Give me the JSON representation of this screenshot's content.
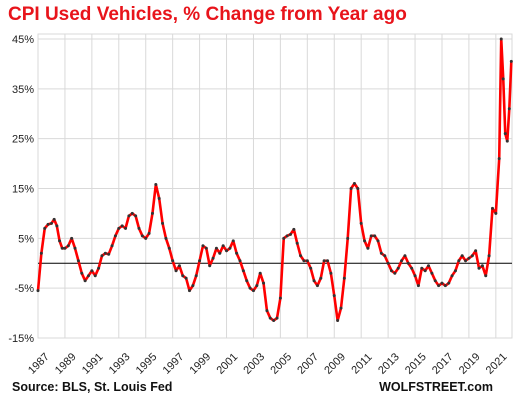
{
  "chart_data": {
    "type": "line",
    "title": "CPI Used Vehicles, % Change from Year ago",
    "xlabel": "",
    "ylabel": "",
    "x_range": [
      1987,
      2022.2
    ],
    "ylim": [
      -15,
      46
    ],
    "y_ticks": [
      45,
      35,
      25,
      15,
      5,
      -5,
      -15
    ],
    "y_tick_labels": [
      "45%",
      "35%",
      "25%",
      "15%",
      "5%",
      "-5%",
      "-15%"
    ],
    "x_tick_labels": [
      "1987",
      "1989",
      "1991",
      "1993",
      "1995",
      "1997",
      "1999",
      "2001",
      "2003",
      "2005",
      "2007",
      "2009",
      "2011",
      "2013",
      "2015",
      "2017",
      "2019",
      "2021"
    ],
    "zero_line": true,
    "grid": true,
    "series": [
      {
        "name": "",
        "color": "#ff0000",
        "marker_color": "#333333",
        "points": [
          [
            1987.0,
            -5.5
          ],
          [
            1987.25,
            2.0
          ],
          [
            1987.5,
            7.0
          ],
          [
            1987.75,
            7.8
          ],
          [
            1988.0,
            8.0
          ],
          [
            1988.2,
            8.8
          ],
          [
            1988.4,
            7.5
          ],
          [
            1988.6,
            4.5
          ],
          [
            1988.8,
            3.0
          ],
          [
            1989.0,
            3.0
          ],
          [
            1989.25,
            3.5
          ],
          [
            1989.5,
            5.0
          ],
          [
            1989.75,
            3.0
          ],
          [
            1990.0,
            0.5
          ],
          [
            1990.25,
            -2.0
          ],
          [
            1990.5,
            -3.5
          ],
          [
            1990.75,
            -2.5
          ],
          [
            1991.0,
            -1.5
          ],
          [
            1991.25,
            -2.5
          ],
          [
            1991.5,
            -1.0
          ],
          [
            1991.75,
            1.5
          ],
          [
            1992.0,
            2.0
          ],
          [
            1992.25,
            1.8
          ],
          [
            1992.5,
            3.5
          ],
          [
            1992.75,
            5.5
          ],
          [
            1993.0,
            7.0
          ],
          [
            1993.25,
            7.5
          ],
          [
            1993.5,
            7.0
          ],
          [
            1993.75,
            9.5
          ],
          [
            1994.0,
            10.0
          ],
          [
            1994.25,
            9.5
          ],
          [
            1994.5,
            7.0
          ],
          [
            1994.75,
            5.5
          ],
          [
            1995.0,
            5.0
          ],
          [
            1995.25,
            6.0
          ],
          [
            1995.5,
            10.0
          ],
          [
            1995.75,
            15.8
          ],
          [
            1996.0,
            13.0
          ],
          [
            1996.25,
            8.0
          ],
          [
            1996.5,
            5.0
          ],
          [
            1996.75,
            3.0
          ],
          [
            1997.0,
            0.5
          ],
          [
            1997.25,
            -1.5
          ],
          [
            1997.5,
            -0.5
          ],
          [
            1997.75,
            -2.5
          ],
          [
            1998.0,
            -3.0
          ],
          [
            1998.25,
            -5.5
          ],
          [
            1998.5,
            -4.5
          ],
          [
            1998.75,
            -2.5
          ],
          [
            1999.0,
            0.5
          ],
          [
            1999.25,
            3.5
          ],
          [
            1999.5,
            3.0
          ],
          [
            1999.75,
            -0.5
          ],
          [
            2000.0,
            1.0
          ],
          [
            2000.25,
            3.0
          ],
          [
            2000.5,
            2.0
          ],
          [
            2000.75,
            3.5
          ],
          [
            2001.0,
            2.5
          ],
          [
            2001.25,
            3.0
          ],
          [
            2001.5,
            4.5
          ],
          [
            2001.75,
            2.0
          ],
          [
            2002.0,
            0.5
          ],
          [
            2002.25,
            -1.5
          ],
          [
            2002.5,
            -3.5
          ],
          [
            2002.75,
            -5.0
          ],
          [
            2003.0,
            -5.5
          ],
          [
            2003.25,
            -4.5
          ],
          [
            2003.5,
            -2.0
          ],
          [
            2003.75,
            -4.0
          ],
          [
            2004.0,
            -9.5
          ],
          [
            2004.25,
            -11.0
          ],
          [
            2004.5,
            -11.5
          ],
          [
            2004.75,
            -11.0
          ],
          [
            2005.0,
            -7.0
          ],
          [
            2005.25,
            5.0
          ],
          [
            2005.5,
            5.5
          ],
          [
            2005.75,
            5.8
          ],
          [
            2006.0,
            6.8
          ],
          [
            2006.25,
            4.0
          ],
          [
            2006.5,
            1.5
          ],
          [
            2006.75,
            0.5
          ],
          [
            2007.0,
            0.5
          ],
          [
            2007.25,
            -1.0
          ],
          [
            2007.5,
            -3.5
          ],
          [
            2007.75,
            -4.5
          ],
          [
            2008.0,
            -3.0
          ],
          [
            2008.25,
            0.5
          ],
          [
            2008.5,
            0.5
          ],
          [
            2008.75,
            -2.0
          ],
          [
            2009.0,
            -6.5
          ],
          [
            2009.25,
            -11.5
          ],
          [
            2009.5,
            -9.0
          ],
          [
            2009.75,
            -3.0
          ],
          [
            2010.0,
            5.0
          ],
          [
            2010.25,
            15.0
          ],
          [
            2010.5,
            16.0
          ],
          [
            2010.75,
            15.0
          ],
          [
            2011.0,
            8.0
          ],
          [
            2011.25,
            4.5
          ],
          [
            2011.5,
            3.0
          ],
          [
            2011.75,
            5.5
          ],
          [
            2012.0,
            5.5
          ],
          [
            2012.25,
            4.5
          ],
          [
            2012.5,
            2.0
          ],
          [
            2012.75,
            1.5
          ],
          [
            2013.0,
            0.0
          ],
          [
            2013.25,
            -1.5
          ],
          [
            2013.5,
            -2.0
          ],
          [
            2013.75,
            -1.0
          ],
          [
            2014.0,
            0.5
          ],
          [
            2014.25,
            1.5
          ],
          [
            2014.5,
            0.0
          ],
          [
            2014.75,
            -1.0
          ],
          [
            2015.0,
            -2.5
          ],
          [
            2015.25,
            -4.5
          ],
          [
            2015.5,
            -1.0
          ],
          [
            2015.75,
            -1.5
          ],
          [
            2016.0,
            -0.5
          ],
          [
            2016.25,
            -2.0
          ],
          [
            2016.5,
            -3.5
          ],
          [
            2016.75,
            -4.5
          ],
          [
            2017.0,
            -4.0
          ],
          [
            2017.25,
            -4.5
          ],
          [
            2017.5,
            -4.0
          ],
          [
            2017.75,
            -2.5
          ],
          [
            2018.0,
            -1.5
          ],
          [
            2018.25,
            0.5
          ],
          [
            2018.5,
            1.5
          ],
          [
            2018.75,
            0.5
          ],
          [
            2019.0,
            1.0
          ],
          [
            2019.25,
            1.5
          ],
          [
            2019.5,
            2.5
          ],
          [
            2019.75,
            -1.0
          ],
          [
            2020.0,
            -0.5
          ],
          [
            2020.25,
            -2.5
          ],
          [
            2020.5,
            1.5
          ],
          [
            2020.75,
            11.0
          ],
          [
            2021.0,
            10.0
          ],
          [
            2021.25,
            21.0
          ],
          [
            2021.4,
            45.0
          ],
          [
            2021.55,
            37.0
          ],
          [
            2021.7,
            26.0
          ],
          [
            2021.85,
            24.5
          ],
          [
            2022.0,
            31.0
          ],
          [
            2022.15,
            40.5
          ]
        ]
      }
    ]
  },
  "footer": {
    "source": "Source: BLS, St. Louis Fed",
    "brand": "WOLFSTREET.com"
  }
}
